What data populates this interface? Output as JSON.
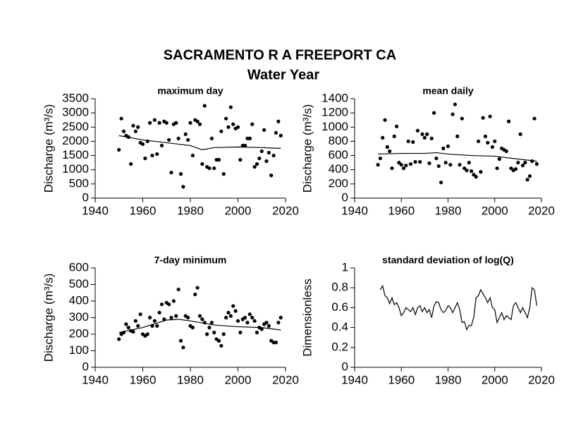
{
  "title": "SACRAMENTO R A FREEPORT CA",
  "subtitle": "Water Year",
  "chart_data": [
    {
      "type": "scatter",
      "title": "maximum day",
      "y_label": "Discharge (m³/s)",
      "xlim": [
        1940,
        2020
      ],
      "xticks": [
        1940,
        1960,
        1980,
        2000,
        2020
      ],
      "ylim": [
        0,
        3500
      ],
      "yticks": [
        0,
        500,
        1000,
        1500,
        2000,
        2500,
        3000,
        3500
      ],
      "x": [
        1950,
        1951,
        1952,
        1953,
        1954,
        1955,
        1956,
        1957,
        1958,
        1959,
        1960,
        1961,
        1962,
        1963,
        1964,
        1965,
        1966,
        1967,
        1968,
        1969,
        1970,
        1971,
        1972,
        1973,
        1974,
        1975,
        1976,
        1977,
        1978,
        1979,
        1980,
        1981,
        1982,
        1983,
        1984,
        1985,
        1986,
        1987,
        1988,
        1989,
        1990,
        1991,
        1992,
        1993,
        1994,
        1995,
        1996,
        1997,
        1998,
        1999,
        2000,
        2001,
        2002,
        2003,
        2004,
        2005,
        2006,
        2007,
        2008,
        2009,
        2010,
        2011,
        2012,
        2013,
        2014,
        2015,
        2016,
        2017,
        2018
      ],
      "values": [
        1700,
        2800,
        2350,
        2200,
        2150,
        1200,
        2550,
        2350,
        2500,
        1950,
        1900,
        1400,
        2000,
        2650,
        1500,
        2750,
        1550,
        2650,
        1850,
        2700,
        2650,
        2050,
        900,
        2600,
        2650,
        2100,
        850,
        400,
        2250,
        2050,
        2650,
        1500,
        2750,
        2700,
        2600,
        1200,
        3250,
        1100,
        1050,
        2100,
        1050,
        1350,
        1350,
        2350,
        850,
        2800,
        2500,
        3200,
        2600,
        2450,
        2500,
        1350,
        1850,
        1850,
        2100,
        2100,
        2600,
        1100,
        1200,
        1400,
        1650,
        2400,
        1300,
        1600,
        800,
        1500,
        2300,
        2700,
        2200
      ],
      "smooth_x": [
        1950,
        1960,
        1970,
        1980,
        1985,
        1990,
        2000,
        2010,
        2018
      ],
      "smooth_values": [
        2200,
        2050,
        1950,
        1850,
        1700,
        1780,
        1800,
        1780,
        1750
      ]
    },
    {
      "type": "scatter",
      "title": "mean daily",
      "y_label": "Discharge (m³/s)",
      "xlim": [
        1940,
        2020
      ],
      "xticks": [
        1940,
        1960,
        1980,
        2000,
        2020
      ],
      "ylim": [
        0,
        1400
      ],
      "yticks": [
        0,
        200,
        400,
        600,
        800,
        1000,
        1200,
        1400
      ],
      "x": [
        1950,
        1951,
        1952,
        1953,
        1954,
        1955,
        1956,
        1957,
        1958,
        1959,
        1960,
        1961,
        1962,
        1963,
        1964,
        1965,
        1966,
        1967,
        1968,
        1969,
        1970,
        1971,
        1972,
        1973,
        1974,
        1975,
        1976,
        1977,
        1978,
        1979,
        1980,
        1981,
        1982,
        1983,
        1984,
        1985,
        1986,
        1987,
        1988,
        1989,
        1990,
        1991,
        1992,
        1993,
        1994,
        1995,
        1996,
        1997,
        1998,
        1999,
        2000,
        2001,
        2002,
        2003,
        2004,
        2005,
        2006,
        2007,
        2008,
        2009,
        2010,
        2011,
        2012,
        2013,
        2014,
        2015,
        2016,
        2017,
        2018
      ],
      "values": [
        470,
        560,
        850,
        1100,
        720,
        660,
        420,
        870,
        1010,
        500,
        470,
        420,
        460,
        800,
        480,
        790,
        510,
        950,
        510,
        900,
        850,
        900,
        490,
        840,
        1200,
        560,
        450,
        220,
        700,
        500,
        730,
        470,
        1180,
        1320,
        870,
        470,
        1120,
        420,
        390,
        500,
        380,
        330,
        300,
        800,
        370,
        1130,
        870,
        780,
        1150,
        720,
        800,
        420,
        550,
        700,
        680,
        660,
        1080,
        420,
        390,
        410,
        500,
        900,
        460,
        500,
        260,
        310,
        520,
        1120,
        480
      ],
      "smooth_x": [
        1950,
        1960,
        1970,
        1975,
        1980,
        1990,
        2000,
        2010,
        2018
      ],
      "smooth_values": [
        620,
        630,
        630,
        640,
        620,
        600,
        590,
        550,
        520
      ]
    },
    {
      "type": "scatter",
      "title": "7-day minimum",
      "y_label": "Discharge (m³/s)",
      "xlim": [
        1940,
        2020
      ],
      "xticks": [
        1940,
        1960,
        1980,
        2000,
        2020
      ],
      "ylim": [
        0,
        600
      ],
      "yticks": [
        0,
        100,
        200,
        300,
        400,
        500,
        600
      ],
      "x": [
        1950,
        1951,
        1952,
        1953,
        1954,
        1955,
        1956,
        1957,
        1958,
        1959,
        1960,
        1961,
        1962,
        1963,
        1964,
        1965,
        1966,
        1967,
        1968,
        1969,
        1970,
        1971,
        1972,
        1973,
        1974,
        1975,
        1976,
        1977,
        1978,
        1979,
        1980,
        1981,
        1982,
        1983,
        1984,
        1985,
        1986,
        1987,
        1988,
        1989,
        1990,
        1991,
        1992,
        1993,
        1994,
        1995,
        1996,
        1997,
        1998,
        1999,
        2000,
        2001,
        2002,
        2003,
        2004,
        2005,
        2006,
        2007,
        2008,
        2009,
        2010,
        2011,
        2012,
        2013,
        2014,
        2015,
        2016,
        2017,
        2018
      ],
      "values": [
        170,
        200,
        210,
        260,
        240,
        220,
        215,
        280,
        250,
        320,
        200,
        190,
        200,
        300,
        250,
        280,
        250,
        330,
        380,
        290,
        390,
        380,
        300,
        400,
        310,
        470,
        160,
        120,
        310,
        300,
        250,
        240,
        440,
        480,
        310,
        290,
        270,
        200,
        240,
        270,
        210,
        170,
        160,
        130,
        200,
        300,
        330,
        310,
        370,
        340,
        280,
        210,
        290,
        300,
        270,
        320,
        300,
        280,
        210,
        240,
        230,
        260,
        270,
        250,
        160,
        150,
        150,
        270,
        300
      ],
      "smooth_x": [
        1950,
        1960,
        1970,
        1975,
        1980,
        1990,
        2000,
        2010,
        2018
      ],
      "smooth_values": [
        210,
        240,
        285,
        290,
        280,
        255,
        245,
        240,
        225
      ]
    },
    {
      "type": "line",
      "title": "standard deviation of log(Q)",
      "y_label": "Dimensionless",
      "xlim": [
        1940,
        2020
      ],
      "xticks": [
        1940,
        1960,
        1980,
        2000,
        2020
      ],
      "ylim": [
        0,
        1
      ],
      "yticks": [
        0,
        0.2,
        0.4,
        0.6,
        0.8,
        1
      ],
      "x": [
        1951,
        1952,
        1953,
        1954,
        1955,
        1956,
        1957,
        1958,
        1959,
        1960,
        1961,
        1962,
        1963,
        1964,
        1965,
        1966,
        1967,
        1968,
        1969,
        1970,
        1971,
        1972,
        1973,
        1974,
        1975,
        1976,
        1977,
        1978,
        1979,
        1980,
        1981,
        1982,
        1983,
        1984,
        1985,
        1986,
        1987,
        1988,
        1989,
        1990,
        1991,
        1992,
        1993,
        1994,
        1995,
        1996,
        1997,
        1998,
        1999,
        2000,
        2001,
        2002,
        2003,
        2004,
        2005,
        2006,
        2007,
        2008,
        2009,
        2010,
        2011,
        2012,
        2013,
        2014,
        2015,
        2016,
        2017,
        2018
      ],
      "values": [
        0.78,
        0.82,
        0.72,
        0.7,
        0.64,
        0.7,
        0.63,
        0.65,
        0.6,
        0.52,
        0.55,
        0.6,
        0.58,
        0.56,
        0.6,
        0.53,
        0.6,
        0.62,
        0.56,
        0.6,
        0.55,
        0.58,
        0.5,
        0.62,
        0.66,
        0.65,
        0.58,
        0.55,
        0.57,
        0.62,
        0.6,
        0.55,
        0.6,
        0.65,
        0.58,
        0.45,
        0.46,
        0.38,
        0.42,
        0.42,
        0.5,
        0.7,
        0.72,
        0.78,
        0.74,
        0.7,
        0.65,
        0.7,
        0.6,
        0.58,
        0.45,
        0.5,
        0.55,
        0.48,
        0.52,
        0.5,
        0.48,
        0.62,
        0.65,
        0.6,
        0.55,
        0.6,
        0.55,
        0.5,
        0.6,
        0.8,
        0.78,
        0.62
      ]
    }
  ]
}
